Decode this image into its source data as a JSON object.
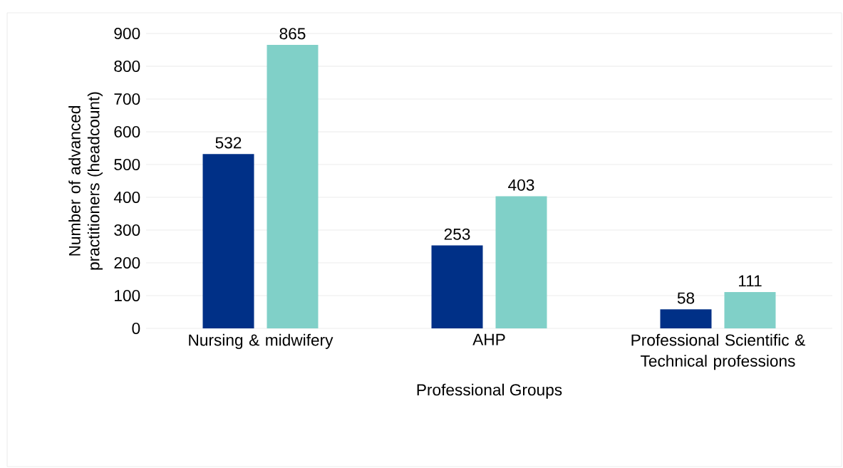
{
  "chart_data": {
    "type": "bar",
    "xlabel": "Professional Groups",
    "ylabel": "Number of advanced practitioners (headcount)",
    "categories": [
      "Nursing & midwifery",
      "AHP",
      "Professional Scientific & Technical professions"
    ],
    "series": [
      {
        "color": "#003087",
        "values": [
          532,
          253,
          58
        ]
      },
      {
        "color": "#80d0c8",
        "values": [
          865,
          403,
          111
        ]
      }
    ],
    "ylim": [
      0,
      900
    ],
    "yticks": [
      0,
      100,
      200,
      300,
      400,
      500,
      600,
      700,
      800,
      900
    ],
    "grid": "y",
    "data_labels": true
  }
}
